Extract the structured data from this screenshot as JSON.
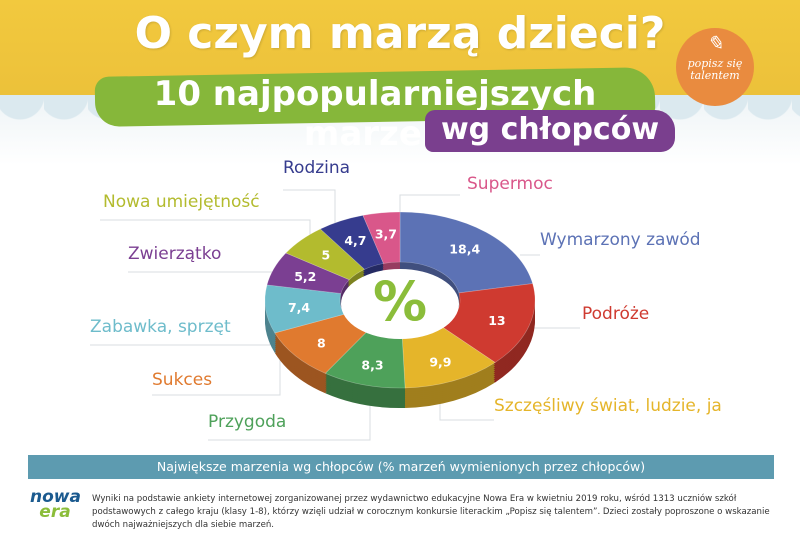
{
  "header": {
    "title": "O czym marzą dzieci?",
    "subtitle": "10 najpopularniejszych marzeń",
    "subtitle2": "wg chłopców",
    "logo_text": "popisz się talentem"
  },
  "chart_data": {
    "type": "pie",
    "donut": true,
    "center_label": "%",
    "categories": [
      "Wymarzony zawód",
      "Podróże",
      "Szczęśliwy świat, ludzie, ja",
      "Przygoda",
      "Sukces",
      "Zabawka, sprzęt",
      "Zwierzątko",
      "Nowa umiejętność",
      "Rodzina",
      "Supermoc"
    ],
    "values": [
      18.4,
      13,
      9.9,
      8.3,
      8,
      7.4,
      5.2,
      5,
      4.7,
      3.7
    ],
    "value_labels": [
      "18,4",
      "13",
      "9,9",
      "8,3",
      "8",
      "7,4",
      "5,2",
      "5",
      "4,7",
      "3,7"
    ],
    "colors": [
      "#5c72b5",
      "#cf3a30",
      "#e5b52a",
      "#4ea15a",
      "#e07a2f",
      "#6ebccb",
      "#7b3f92",
      "#b3bb2e",
      "#363c8e",
      "#d9578a"
    ],
    "title": "Największe marzenia wg chłopców (% marzeń wymienionych przez chłopców)"
  },
  "footer": {
    "logo": "nowa era",
    "note": "Wyniki na podstawie ankiety internetowej zorganizowanej przez wydawnictwo edukacyjne Nowa Era w kwietniu 2019 roku, wśród 1313 uczniów szkół podstawowych z całego kraju (klasy 1-8), którzy wzięli udział w corocznym konkursie literackim „Popisz się talentem”. Dzieci zostały poproszone o wskazanie dwóch najważniejszych dla siebie marzeń."
  }
}
